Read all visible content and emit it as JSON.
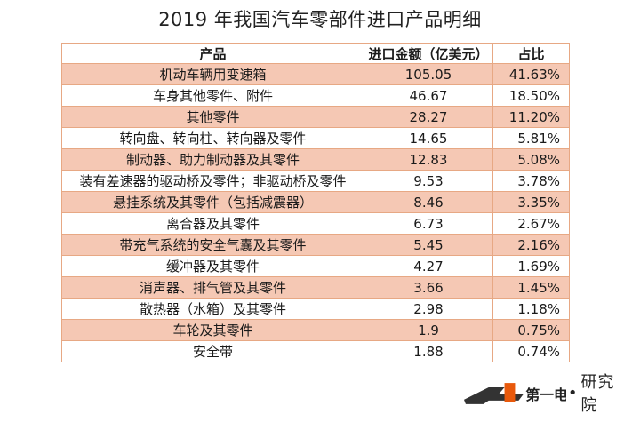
{
  "title": "2019 年我国汽车零部件进口产品明细",
  "table": {
    "headers": [
      "产品",
      "进口金额（亿美元）",
      "占比"
    ],
    "rows": [
      [
        "机动车辆用变速箱",
        "105.05",
        "41.63%"
      ],
      [
        "车身其他零件、附件",
        "46.67",
        "18.50%"
      ],
      [
        "其他零件",
        "28.27",
        "11.20%"
      ],
      [
        "转向盘、转向柱、转向器及零件",
        "14.65",
        "5.81%"
      ],
      [
        "制动器、助力制动器及其零件",
        "12.83",
        "5.08%"
      ],
      [
        "装有差速器的驱动桥及零件；非驱动桥及零件",
        "9.53",
        "3.78%"
      ],
      [
        "悬挂系统及其零件（包括减震器）",
        "8.46",
        "3.35%"
      ],
      [
        "离合器及其零件",
        "6.73",
        "2.67%"
      ],
      [
        "带充气系统的安全气囊及其零件",
        "5.45",
        "2.16%"
      ],
      [
        "缓冲器及其零件",
        "4.27",
        "1.69%"
      ],
      [
        "消声器、排气管及其零件",
        "3.66",
        "1.45%"
      ],
      [
        "散热器（水箱）及其零件",
        "2.98",
        "1.18%"
      ],
      [
        "车轮及其零件",
        "1.9",
        "0.75%"
      ],
      [
        "安全带",
        "1.88",
        "0.74%"
      ]
    ]
  },
  "footer": {
    "logo_text": "第一电动",
    "separator": "•",
    "label": "研究院"
  },
  "colors": {
    "row_highlight": "#f5c8b4",
    "border": "#e7a884",
    "logo_accent": "#e8590c"
  }
}
